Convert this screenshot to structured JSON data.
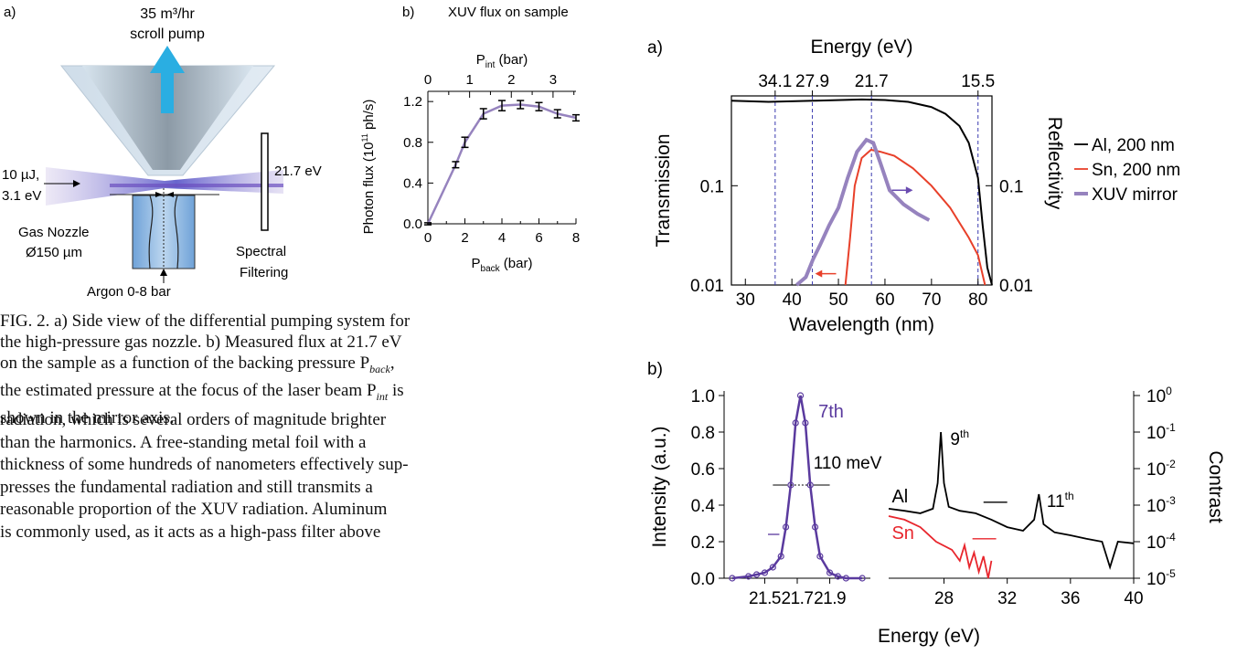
{
  "fig_left": {
    "panel_a": {
      "label": "a)",
      "pump_line1": "35 m³/hr",
      "pump_line2": "scroll pump",
      "laser_line1": "10 µJ,",
      "laser_line2": "3.1 eV",
      "nozzle_line1": "Gas Nozzle",
      "nozzle_line2": "Ø150 µm",
      "argon": "Argon 0-8 bar",
      "harmonic": "21.7 eV",
      "filter_line1": "Spectral",
      "filter_line2": "Filtering"
    },
    "panel_b_label": "b)"
  },
  "chart_data": [
    {
      "type": "line",
      "title": "XUV flux on sample",
      "xlabel": "P_back (bar)",
      "x2label": "P_int (bar)",
      "ylabel": "Photon flux (10^11 ph/s)",
      "xlim": [
        0,
        8
      ],
      "ylim": [
        0,
        1.3
      ],
      "x_ticks": [
        "0",
        "2",
        "4",
        "6",
        "8"
      ],
      "x2_ticks": [
        "0",
        "1",
        "2",
        "3"
      ],
      "y_ticks": [
        "0.0",
        "0.4",
        "0.8",
        "1.2"
      ],
      "series": [
        {
          "x": [
            0,
            1.5,
            2,
            3,
            4,
            5,
            6,
            7,
            8
          ],
          "y": [
            0.0,
            0.58,
            0.8,
            1.08,
            1.16,
            1.17,
            1.15,
            1.08,
            1.04
          ],
          "err": [
            0.01,
            0.03,
            0.05,
            0.05,
            0.05,
            0.04,
            0.04,
            0.04,
            0.03
          ]
        }
      ]
    },
    {
      "type": "line",
      "label": "a)",
      "xlabel": "Wavelength (nm)",
      "x2label": "Energy (eV)",
      "ylabel": "Transmission",
      "y2label": "Reflectivity",
      "xlim": [
        27,
        83
      ],
      "ylim": [
        0.01,
        1
      ],
      "yscale": "log",
      "x_ticks": [
        "30",
        "40",
        "50",
        "60",
        "70",
        "80"
      ],
      "x2_ticks": [
        "34.1",
        "27.9",
        "21.7",
        "15.5"
      ],
      "y_ticks": [
        "0.01",
        "0.1"
      ],
      "y2_ticks": [
        "0.01",
        "0.1"
      ],
      "reference_lines_nm": [
        36.4,
        44.4,
        57.1,
        80.0
      ],
      "legend": "right",
      "series": [
        {
          "name": "Al, 200 nm",
          "color": "#000000",
          "x": [
            27,
            35,
            45,
            55,
            60,
            65,
            70,
            73,
            76,
            78,
            80,
            81,
            82,
            83
          ],
          "y": [
            0.72,
            0.7,
            0.72,
            0.74,
            0.73,
            0.7,
            0.62,
            0.53,
            0.4,
            0.27,
            0.12,
            0.04,
            0.015,
            0.01
          ]
        },
        {
          "name": "Sn, 200 nm",
          "color": "#e8402a",
          "x": [
            51.5,
            52.5,
            53.5,
            55,
            57,
            59,
            62,
            66,
            70,
            74,
            78,
            80,
            81.5
          ],
          "y": [
            0.01,
            0.03,
            0.1,
            0.19,
            0.23,
            0.22,
            0.2,
            0.15,
            0.1,
            0.06,
            0.03,
            0.02,
            0.01
          ]
        },
        {
          "name": "XUV mirror",
          "color": "#9683be",
          "x": [
            41,
            43,
            44.5,
            46,
            48,
            50,
            52,
            54,
            56,
            57.5,
            59,
            61,
            64,
            67,
            69.5
          ],
          "y": [
            0.01,
            0.012,
            0.018,
            0.025,
            0.04,
            0.06,
            0.12,
            0.22,
            0.29,
            0.27,
            0.17,
            0.09,
            0.065,
            0.052,
            0.045
          ]
        }
      ]
    },
    {
      "type": "line",
      "label": "b)",
      "xlabel": "",
      "ylabel": "Intensity (a.u.)",
      "xlim": [
        21.25,
        22.15
      ],
      "ylim": [
        0,
        1.0
      ],
      "x_ticks": [
        "21.5",
        "21.7",
        "21.9"
      ],
      "y_ticks": [
        "0.0",
        "0.2",
        "0.4",
        "0.6",
        "0.8",
        "1.0"
      ],
      "annotations": [
        "7th",
        "110 meV"
      ],
      "series": [
        {
          "name": "7th",
          "color": "#5a3a9e",
          "x": [
            21.3,
            21.4,
            21.45,
            21.5,
            21.55,
            21.6,
            21.63,
            21.66,
            21.69,
            21.72,
            21.75,
            21.78,
            21.81,
            21.84,
            21.9,
            21.95,
            22.0,
            22.1
          ],
          "y": [
            0.0,
            0.01,
            0.02,
            0.03,
            0.06,
            0.12,
            0.28,
            0.51,
            0.85,
            1.0,
            0.85,
            0.51,
            0.28,
            0.12,
            0.03,
            0.01,
            0.0,
            0.0
          ]
        }
      ]
    },
    {
      "type": "line",
      "xlabel": "Energy (eV)",
      "y2label": "Contrast",
      "xlim": [
        24.5,
        40
      ],
      "ylim": [
        1e-05,
        1
      ],
      "yscale": "log",
      "x_ticks": [
        "28",
        "32",
        "36",
        "40"
      ],
      "y2_ticks": [
        "10^0",
        "10^-1",
        "10^-2",
        "10^-3",
        "10^-4",
        "10^-5"
      ],
      "annotations": [
        "9th",
        "11th"
      ],
      "series": [
        {
          "name": "Al",
          "color": "#000000",
          "x": [
            24.5,
            25.5,
            26.5,
            27.3,
            27.6,
            27.8,
            28.0,
            28.3,
            29,
            30,
            31,
            32,
            33,
            33.7,
            34.0,
            34.3,
            35,
            36,
            37,
            38,
            38.5,
            39,
            40
          ],
          "y": [
            0.0008,
            0.0007,
            0.0006,
            0.0008,
            0.004,
            0.1,
            0.004,
            0.0009,
            0.0007,
            0.0006,
            0.0004,
            0.00025,
            0.0002,
            0.0004,
            0.002,
            0.0003,
            0.00018,
            0.00015,
            0.00012,
            0.0001,
            2e-05,
            0.0001,
            9e-05
          ]
        },
        {
          "name": "Sn",
          "color": "#e8262d",
          "x": [
            24.5,
            25.5,
            26.5,
            27.5,
            28.5,
            29.0,
            29.3,
            29.6,
            29.9,
            30.2,
            30.5,
            30.8,
            31.0
          ],
          "y": [
            0.0005,
            0.0004,
            0.00025,
            0.0001,
            6e-05,
            3e-05,
            8e-05,
            2e-05,
            5e-05,
            1.5e-05,
            4e-05,
            1e-05,
            3e-05
          ]
        }
      ]
    }
  ],
  "caption": {
    "line1": "FIG. 2.    a) Side view of the differential pumping system for",
    "line2": "the high-pressure gas nozzle.  b) Measured flux at 21.7 eV",
    "line3": "on the sample as a function of the backing pressure P",
    "line3_sub": "back",
    "line3_end": ",",
    "line4": "the estimated pressure at the focus of the laser beam P",
    "line4_sub": "int",
    "line4_end": " is",
    "line5": "shown in the mirror axis."
  },
  "body": [
    "radiation, which is several orders of magnitude brighter",
    "than the harmonics.  A free-standing metal foil with a",
    "thickness of some hundreds of nanometers effectively sup-",
    "presses the fundamental radiation and still transmits a",
    "reasonable proportion of the XUV radiation. Aluminum",
    "is commonly used, as it acts as a high-pass filter above"
  ]
}
